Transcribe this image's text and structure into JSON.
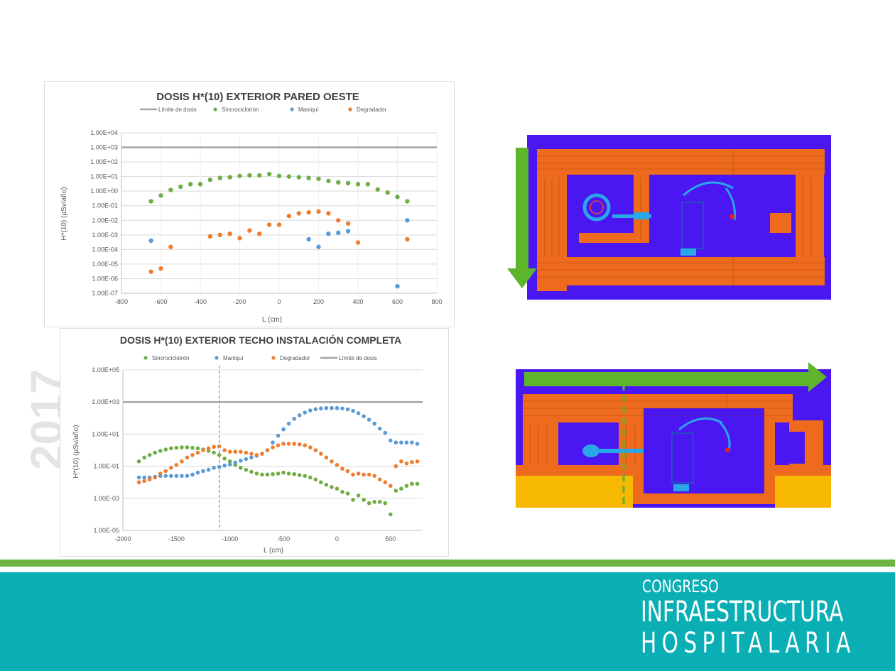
{
  "watermark": {
    "text": "2017"
  },
  "brand": {
    "line1": "CONGRESO",
    "line2": "INFRAESTRUCTURA",
    "line3": "HOSPITALARIA"
  },
  "colors": {
    "green": "#70ad47",
    "blue": "#5b9bd5",
    "orange": "#ed7d31",
    "gray": "#a5a5a5",
    "footer": "#0aafb6"
  },
  "chart_data": [
    {
      "type": "scatter",
      "title": "DOSIS H*(10) EXTERIOR PARED OESTE",
      "xlabel": "L (cm)",
      "ylabel": "H*(10) (µSv/año)",
      "xlim": [
        -800,
        800
      ],
      "x_ticks": [
        "-800",
        "-600",
        "-400",
        "-200",
        "0",
        "200",
        "400",
        "600",
        "800"
      ],
      "y_log": true,
      "ylim": [
        1e-07,
        10000.0
      ],
      "y_ticks": [
        "1.00E-07",
        "1.00E-06",
        "1.00E-05",
        "1.00E-04",
        "1.00E-03",
        "1.00E-02",
        "1.00E-01",
        "1.00E+00",
        "1.00E+01",
        "1.00E+02",
        "1.00E+03",
        "1.00E+04"
      ],
      "grid": true,
      "legend_position": "top",
      "legend_order": [
        "Límite de dosis",
        "Sincrociclotrón",
        "Maniquí",
        "Degradador"
      ],
      "limit_line": {
        "name": "Límite de dosis",
        "value": 1000
      },
      "series": [
        {
          "name": "Sincrociclotrón",
          "color": "#70ad47",
          "points": [
            [
              -650,
              0.2
            ],
            [
              -600,
              0.5
            ],
            [
              -550,
              1.2
            ],
            [
              -500,
              2
            ],
            [
              -450,
              3
            ],
            [
              -400,
              3
            ],
            [
              -350,
              6
            ],
            [
              -300,
              8
            ],
            [
              -250,
              9
            ],
            [
              -200,
              11
            ],
            [
              -150,
              12
            ],
            [
              -100,
              12
            ],
            [
              -50,
              15
            ],
            [
              0,
              11
            ],
            [
              50,
              10
            ],
            [
              100,
              9
            ],
            [
              150,
              8
            ],
            [
              200,
              7
            ],
            [
              250,
              5
            ],
            [
              300,
              4
            ],
            [
              350,
              3.5
            ],
            [
              400,
              3
            ],
            [
              450,
              3
            ],
            [
              500,
              1.3
            ],
            [
              550,
              0.8
            ],
            [
              600,
              0.4
            ],
            [
              650,
              0.2
            ]
          ]
        },
        {
          "name": "Maniquí",
          "color": "#5b9bd5",
          "points": [
            [
              -650,
              0.0004
            ],
            [
              150,
              0.0005
            ],
            [
              200,
              0.00015
            ],
            [
              250,
              0.0012
            ],
            [
              300,
              0.0014
            ],
            [
              350,
              0.0018
            ],
            [
              600,
              3e-07
            ],
            [
              650,
              0.01
            ]
          ]
        },
        {
          "name": "Degradador",
          "color": "#ed7d31",
          "points": [
            [
              -650,
              3e-06
            ],
            [
              -600,
              5e-06
            ],
            [
              -550,
              0.00015
            ],
            [
              -350,
              0.0008
            ],
            [
              -300,
              0.001
            ],
            [
              -250,
              0.0012
            ],
            [
              -200,
              0.0006
            ],
            [
              -150,
              0.002
            ],
            [
              -100,
              0.0012
            ],
            [
              -50,
              0.005
            ],
            [
              0,
              0.005
            ],
            [
              50,
              0.02
            ],
            [
              100,
              0.03
            ],
            [
              150,
              0.035
            ],
            [
              200,
              0.04
            ],
            [
              250,
              0.03
            ],
            [
              300,
              0.01
            ],
            [
              350,
              0.006
            ],
            [
              400,
              0.0003
            ],
            [
              650,
              0.0005
            ]
          ]
        }
      ]
    },
    {
      "type": "scatter",
      "title": "DOSIS H*(10) EXTERIOR TECHO INSTALACIÓN COMPLETA",
      "xlabel": "L (cm)",
      "ylabel": "H*(10) (µSv/año)",
      "xlim": [
        -2000,
        800
      ],
      "x_ticks": [
        "-2000",
        "-1500",
        "-1000",
        "-500",
        "0",
        "500"
      ],
      "y_log": true,
      "ylim": [
        1e-05,
        100000.0
      ],
      "y_ticks": [
        "1.00E-05",
        "1.00E-03",
        "1.00E-01",
        "1.00E+01",
        "1.00E+03",
        "1.00E+05"
      ],
      "grid": true,
      "legend_position": "top",
      "legend_order": [
        "Sincrociclotrón",
        "Maniquí",
        "Degradador",
        "Límite de dosis"
      ],
      "limit_line": {
        "name": "Límite de dosis",
        "value": 1000
      },
      "vertical_marker": -1100,
      "series": [
        {
          "name": "Sincrociclotrón",
          "color": "#70ad47",
          "points": [
            [
              -1850,
              0.2
            ],
            [
              -1800,
              0.35
            ],
            [
              -1750,
              0.5
            ],
            [
              -1700,
              0.7
            ],
            [
              -1650,
              0.9
            ],
            [
              -1600,
              1.1
            ],
            [
              -1550,
              1.3
            ],
            [
              -1500,
              1.4
            ],
            [
              -1450,
              1.5
            ],
            [
              -1400,
              1.5
            ],
            [
              -1350,
              1.4
            ],
            [
              -1300,
              1.3
            ],
            [
              -1250,
              1.1
            ],
            [
              -1200,
              0.9
            ],
            [
              -1150,
              0.7
            ],
            [
              -1100,
              0.5
            ],
            [
              -1050,
              0.3
            ],
            [
              -1000,
              0.2
            ],
            [
              -950,
              0.12
            ],
            [
              -900,
              0.08
            ],
            [
              -850,
              0.06
            ],
            [
              -800,
              0.045
            ],
            [
              -750,
              0.035
            ],
            [
              -700,
              0.03
            ],
            [
              -650,
              0.03
            ],
            [
              -600,
              0.032
            ],
            [
              -550,
              0.035
            ],
            [
              -500,
              0.04
            ],
            [
              -450,
              0.035
            ],
            [
              -400,
              0.032
            ],
            [
              -350,
              0.028
            ],
            [
              -300,
              0.025
            ],
            [
              -250,
              0.02
            ],
            [
              -200,
              0.015
            ],
            [
              -150,
              0.01
            ],
            [
              -100,
              0.007
            ],
            [
              -50,
              0.005
            ],
            [
              0,
              0.004
            ],
            [
              50,
              0.0025
            ],
            [
              100,
              0.002
            ],
            [
              150,
              0.0008
            ],
            [
              200,
              0.0015
            ],
            [
              250,
              0.0008
            ],
            [
              300,
              0.0005
            ],
            [
              350,
              0.0006
            ],
            [
              400,
              0.0006
            ],
            [
              450,
              0.0005
            ],
            [
              500,
              0.0001
            ],
            [
              550,
              0.003
            ],
            [
              600,
              0.004
            ],
            [
              650,
              0.006
            ],
            [
              700,
              0.008
            ],
            [
              750,
              0.008
            ]
          ]
        },
        {
          "name": "Maniquí",
          "color": "#5b9bd5",
          "points": [
            [
              -1850,
              0.02
            ],
            [
              -1800,
              0.02
            ],
            [
              -1750,
              0.02
            ],
            [
              -1700,
              0.022
            ],
            [
              -1650,
              0.025
            ],
            [
              -1600,
              0.025
            ],
            [
              -1550,
              0.025
            ],
            [
              -1500,
              0.025
            ],
            [
              -1450,
              0.025
            ],
            [
              -1400,
              0.025
            ],
            [
              -1350,
              0.03
            ],
            [
              -1300,
              0.04
            ],
            [
              -1250,
              0.05
            ],
            [
              -1200,
              0.06
            ],
            [
              -1150,
              0.08
            ],
            [
              -1100,
              0.09
            ],
            [
              -1050,
              0.11
            ],
            [
              -1000,
              0.13
            ],
            [
              -950,
              0.17
            ],
            [
              -900,
              0.22
            ],
            [
              -850,
              0.28
            ],
            [
              -800,
              0.35
            ],
            [
              -750,
              0.45
            ],
            [
              -700,
              0.6
            ],
            [
              -650,
              1
            ],
            [
              -600,
              3
            ],
            [
              -550,
              8
            ],
            [
              -500,
              20
            ],
            [
              -450,
              45
            ],
            [
              -400,
              90
            ],
            [
              -350,
              150
            ],
            [
              -300,
              220
            ],
            [
              -250,
              300
            ],
            [
              -200,
              360
            ],
            [
              -150,
              400
            ],
            [
              -100,
              420
            ],
            [
              -50,
              420
            ],
            [
              0,
              420
            ],
            [
              50,
              400
            ],
            [
              100,
              350
            ],
            [
              150,
              280
            ],
            [
              200,
              200
            ],
            [
              250,
              130
            ],
            [
              300,
              80
            ],
            [
              350,
              45
            ],
            [
              400,
              22
            ],
            [
              450,
              12
            ],
            [
              500,
              4
            ],
            [
              550,
              3
            ],
            [
              600,
              3
            ],
            [
              650,
              3
            ],
            [
              700,
              3
            ],
            [
              750,
              2.5
            ]
          ]
        },
        {
          "name": "Degradador",
          "color": "#ed7d31",
          "points": [
            [
              -1850,
              0.01
            ],
            [
              -1800,
              0.012
            ],
            [
              -1750,
              0.015
            ],
            [
              -1700,
              0.02
            ],
            [
              -1650,
              0.035
            ],
            [
              -1600,
              0.05
            ],
            [
              -1550,
              0.08
            ],
            [
              -1500,
              0.12
            ],
            [
              -1450,
              0.2
            ],
            [
              -1400,
              0.35
            ],
            [
              -1350,
              0.5
            ],
            [
              -1300,
              0.7
            ],
            [
              -1250,
              1
            ],
            [
              -1200,
              1.3
            ],
            [
              -1150,
              1.6
            ],
            [
              -1100,
              1.7
            ],
            [
              -1050,
              1
            ],
            [
              -1000,
              0.8
            ],
            [
              -950,
              0.8
            ],
            [
              -900,
              0.8
            ],
            [
              -850,
              0.7
            ],
            [
              -800,
              0.6
            ],
            [
              -750,
              0.5
            ],
            [
              -700,
              0.6
            ],
            [
              -650,
              1
            ],
            [
              -600,
              1.5
            ],
            [
              -550,
              2
            ],
            [
              -500,
              2.5
            ],
            [
              -450,
              2.5
            ],
            [
              -400,
              2.5
            ],
            [
              -350,
              2.3
            ],
            [
              -300,
              2
            ],
            [
              -250,
              1.5
            ],
            [
              -200,
              1
            ],
            [
              -150,
              0.6
            ],
            [
              -100,
              0.35
            ],
            [
              -50,
              0.2
            ],
            [
              0,
              0.12
            ],
            [
              50,
              0.07
            ],
            [
              100,
              0.05
            ],
            [
              150,
              0.03
            ],
            [
              200,
              0.035
            ],
            [
              250,
              0.03
            ],
            [
              300,
              0.03
            ],
            [
              350,
              0.025
            ],
            [
              400,
              0.015
            ],
            [
              450,
              0.01
            ],
            [
              500,
              0.006
            ],
            [
              550,
              0.1
            ],
            [
              600,
              0.2
            ],
            [
              650,
              0.15
            ],
            [
              700,
              0.18
            ],
            [
              750,
              0.2
            ]
          ]
        }
      ]
    }
  ]
}
